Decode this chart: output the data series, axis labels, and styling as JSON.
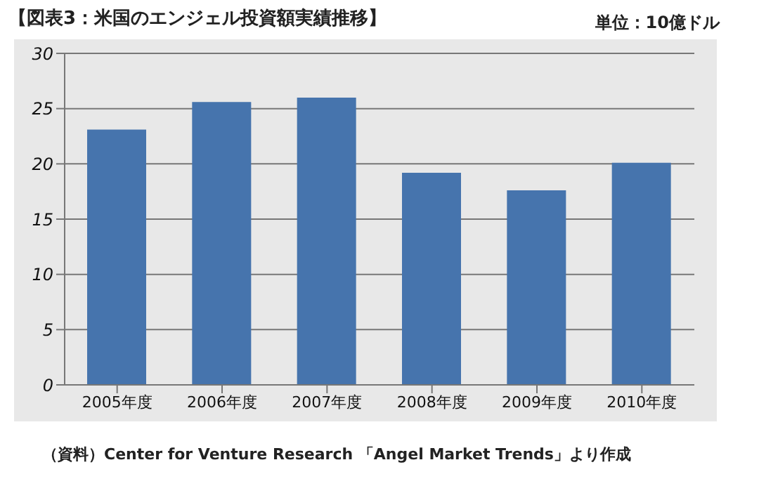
{
  "chart_data": {
    "type": "bar",
    "title": "【図表3：米国のエンジェル投資額実績推移】",
    "ylabel": "単位：10億ドル",
    "categories": [
      "2005年度",
      "2006年度",
      "2007年度",
      "2008年度",
      "2009年度",
      "2010年度"
    ],
    "values": [
      23.1,
      25.6,
      26.0,
      19.2,
      17.6,
      20.1
    ],
    "color": "#4674ad",
    "ylim": [
      0,
      30
    ],
    "yticks": [
      0,
      5,
      10,
      15,
      20,
      25,
      30
    ],
    "grid": "y",
    "annotations": [
      "（資料）Center for Venture Research 「Angel Market Trends」より作成"
    ]
  }
}
